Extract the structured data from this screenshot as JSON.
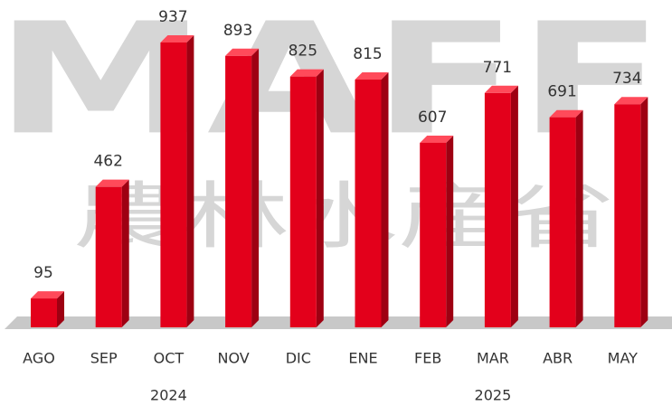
{
  "chart_data": {
    "type": "bar3d",
    "watermark": [
      "MAFF",
      "農林水産省"
    ],
    "categories": [
      "AGO",
      "SEP",
      "OCT",
      "NOV",
      "DIC",
      "ENE",
      "FEB",
      "MAR",
      "ABR",
      "MAY"
    ],
    "values": [
      95,
      462,
      937,
      893,
      825,
      815,
      607,
      771,
      691,
      734
    ],
    "x_groups": [
      {
        "label": "2024",
        "count": 5
      },
      {
        "label": "2025",
        "count": 5
      }
    ],
    "color": "#e3001b"
  }
}
